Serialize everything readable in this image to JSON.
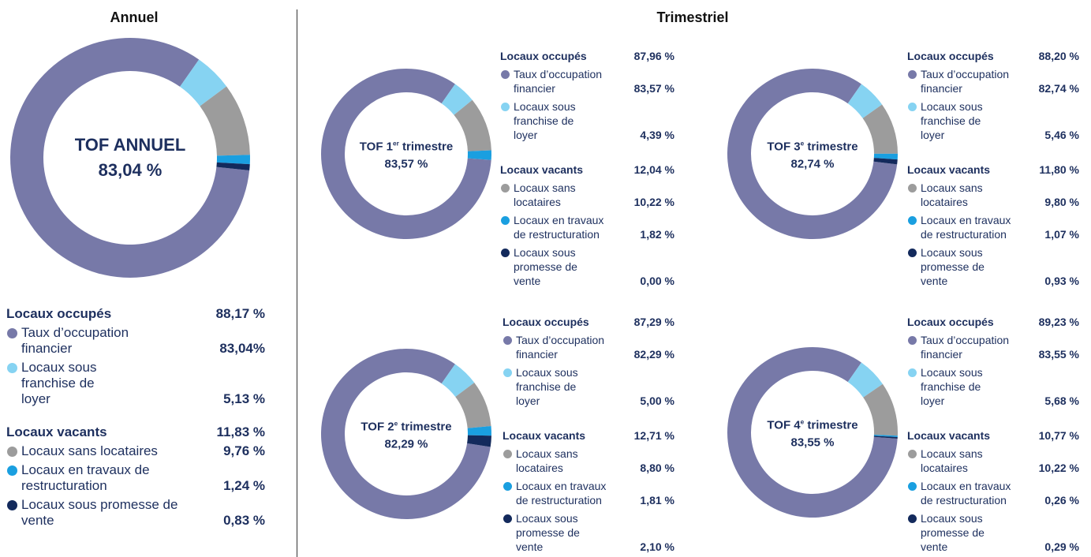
{
  "section_title": "Trimestriel",
  "chart_data": [
    {
      "type": "pie",
      "title": "Annuel",
      "center_title": {
        "text": "TOF ANNUEL"
      },
      "center_value": 83.04,
      "center_value_label": "83,04 %",
      "groups": [
        {
          "name": "Locaux occupés",
          "value": 88.17,
          "value_label": "88,17 %",
          "categories": [
            "Taux d’occupation financier",
            "Locaux sous franchise de loyer"
          ],
          "values": [
            83.04,
            5.13
          ],
          "value_labels": [
            "83,04%",
            "5,13 %"
          ],
          "colors": [
            "#7779a8",
            "#86d3f2"
          ]
        },
        {
          "name": "Locaux vacants",
          "value": 11.83,
          "value_label": "11,83 %",
          "categories": [
            "Locaux sans locataires",
            "Locaux en travaux de restructuration",
            "Locaux sous promesse de vente"
          ],
          "values": [
            9.76,
            1.24,
            0.83
          ],
          "value_labels": [
            "9,76 %",
            "1,24 %",
            "0,83 %"
          ],
          "colors": [
            "#9c9c9c",
            "#1a9fe0",
            "#132a5c"
          ]
        }
      ]
    },
    {
      "type": "pie",
      "center_title": {
        "text": "TOF 1",
        "sup": "er",
        "rest": "trimestre"
      },
      "center_value": 83.57,
      "center_value_label": "83,57 %",
      "groups": [
        {
          "name": "Locaux occupés",
          "value": 87.96,
          "value_label": "87,96 %",
          "categories": [
            "Taux d’occupation financier",
            "Locaux sous franchise de loyer"
          ],
          "values": [
            83.57,
            4.39
          ],
          "value_labels": [
            "83,57 %",
            "4,39 %"
          ],
          "colors": [
            "#7779a8",
            "#86d3f2"
          ]
        },
        {
          "name": "Locaux vacants",
          "value": 12.04,
          "value_label": "12,04 %",
          "categories": [
            "Locaux sans locataires",
            "Locaux en travaux de restructuration",
            "Locaux sous promesse de vente"
          ],
          "values": [
            10.22,
            1.82,
            0.0
          ],
          "value_labels": [
            "10,22 %",
            "1,82 %",
            "0,00 %"
          ],
          "colors": [
            "#9c9c9c",
            "#1a9fe0",
            "#132a5c"
          ]
        }
      ]
    },
    {
      "type": "pie",
      "center_title": {
        "text": "TOF 2",
        "sup": "e",
        "rest": "trimestre"
      },
      "center_value": 82.29,
      "center_value_label": "82,29 %",
      "groups": [
        {
          "name": "Locaux occupés",
          "value": 87.29,
          "value_label": "87,29 %",
          "categories": [
            "Taux d’occupation financier",
            "Locaux sous franchise de loyer"
          ],
          "values": [
            82.29,
            5.0
          ],
          "value_labels": [
            "82,29 %",
            "5,00 %"
          ],
          "colors": [
            "#7779a8",
            "#86d3f2"
          ]
        },
        {
          "name": "Locaux vacants",
          "value": 12.71,
          "value_label": "12,71 %",
          "categories": [
            "Locaux sans locataires",
            "Locaux en travaux de restructuration",
            "Locaux sous promesse de vente"
          ],
          "values": [
            8.8,
            1.81,
            2.1
          ],
          "value_labels": [
            "8,80 %",
            "1,81 %",
            "2,10 %"
          ],
          "colors": [
            "#9c9c9c",
            "#1a9fe0",
            "#132a5c"
          ]
        }
      ]
    },
    {
      "type": "pie",
      "center_title": {
        "text": "TOF 3",
        "sup": "e",
        "rest": "trimestre"
      },
      "center_value": 82.74,
      "center_value_label": "82,74 %",
      "groups": [
        {
          "name": "Locaux occupés",
          "value": 88.2,
          "value_label": "88,20 %",
          "categories": [
            "Taux d’occupation financier",
            "Locaux sous franchise de loyer"
          ],
          "values": [
            82.74,
            5.46
          ],
          "value_labels": [
            "82,74 %",
            "5,46 %"
          ],
          "colors": [
            "#7779a8",
            "#86d3f2"
          ]
        },
        {
          "name": "Locaux vacants",
          "value": 11.8,
          "value_label": "11,80 %",
          "categories": [
            "Locaux sans locataires",
            "Locaux en travaux de restructuration",
            "Locaux sous promesse de vente"
          ],
          "values": [
            9.8,
            1.07,
            0.93
          ],
          "value_labels": [
            "9,80 %",
            "1,07 %",
            "0,93 %"
          ],
          "colors": [
            "#9c9c9c",
            "#1a9fe0",
            "#132a5c"
          ]
        }
      ]
    },
    {
      "type": "pie",
      "center_title": {
        "text": "TOF 4",
        "sup": "e",
        "rest": "trimestre"
      },
      "center_value": 83.55,
      "center_value_label": "83,55 %",
      "groups": [
        {
          "name": "Locaux occupés",
          "value": 89.23,
          "value_label": "89,23 %",
          "categories": [
            "Taux d’occupation financier",
            "Locaux sous franchise de loyer"
          ],
          "values": [
            83.55,
            5.68
          ],
          "value_labels": [
            "83,55 %",
            "5,68 %"
          ],
          "colors": [
            "#7779a8",
            "#86d3f2"
          ]
        },
        {
          "name": "Locaux vacants",
          "value": 10.77,
          "value_label": "10,77 %",
          "categories": [
            "Locaux sans locataires",
            "Locaux en travaux de restructuration",
            "Locaux sous promesse de vente"
          ],
          "values": [
            10.22,
            0.26,
            0.29
          ],
          "value_labels": [
            "10,22 %",
            "0,26 %",
            "0,29 %"
          ],
          "colors": [
            "#9c9c9c",
            "#1a9fe0",
            "#132a5c"
          ]
        }
      ]
    }
  ]
}
